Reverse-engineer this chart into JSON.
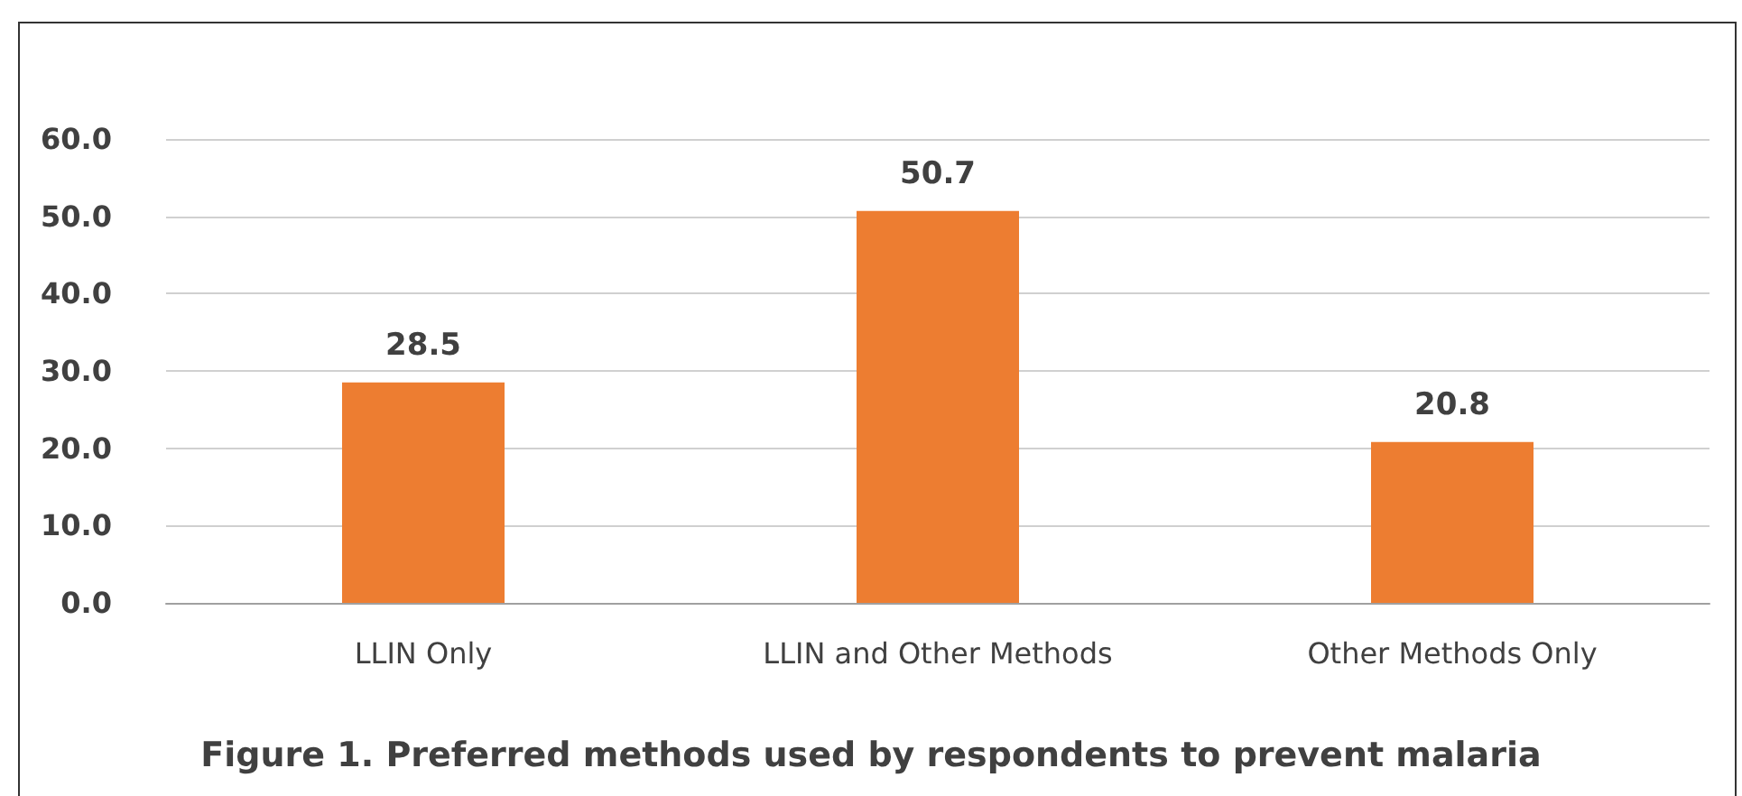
{
  "chart_data": {
    "type": "bar",
    "title": "Figure 1. Preferred methods used by respondents to prevent malaria",
    "categories": [
      "LLIN Only",
      "LLIN and Other Methods",
      "Other Methods Only"
    ],
    "values": [
      28.5,
      50.7,
      20.8
    ],
    "color": "#ed7d31",
    "ylim": [
      0,
      60
    ],
    "yticks": [
      {
        "value": 0,
        "label": "0.0"
      },
      {
        "value": 10,
        "label": "10.0"
      },
      {
        "value": 20,
        "label": "20.0"
      },
      {
        "value": 30,
        "label": "30.0"
      },
      {
        "value": 40,
        "label": "40.0"
      },
      {
        "value": 50,
        "label": "50.0"
      },
      {
        "value": 60,
        "label": "60.0"
      }
    ],
    "grid": "y",
    "data_labels": true
  }
}
